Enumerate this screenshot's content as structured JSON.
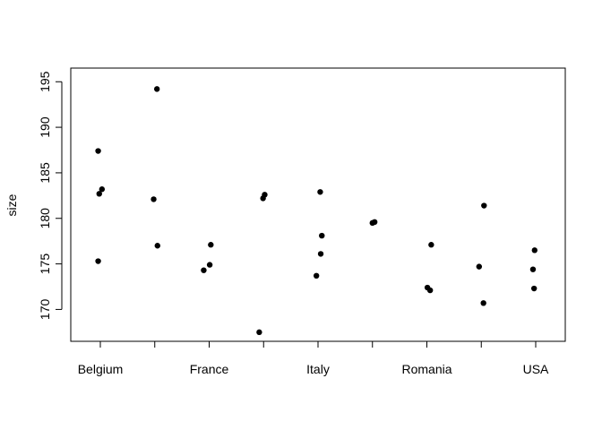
{
  "chart_data": {
    "type": "scatter",
    "title": "",
    "xlabel": "",
    "ylabel": "size",
    "categories": [
      "Belgium",
      "",
      "France",
      "",
      "Italy",
      "",
      "Romania",
      "",
      "USA"
    ],
    "ylim": [
      166.5,
      196.5
    ],
    "yticks": [
      170,
      175,
      180,
      185,
      190,
      195
    ],
    "ytick_labels": [
      "170",
      "175",
      "180",
      "185",
      "190",
      "195"
    ],
    "grid": false,
    "legend": "none",
    "point_color": "#000000",
    "points": [
      {
        "x": 0.96,
        "y": 187.4
      },
      {
        "x": 0.98,
        "y": 182.7
      },
      {
        "x": 1.03,
        "y": 183.2
      },
      {
        "x": 0.96,
        "y": 175.3
      },
      {
        "x": 1.98,
        "y": 182.1
      },
      {
        "x": 2.04,
        "y": 194.2
      },
      {
        "x": 2.05,
        "y": 177.0
      },
      {
        "x": 2.9,
        "y": 174.3
      },
      {
        "x": 3.01,
        "y": 174.9
      },
      {
        "x": 3.03,
        "y": 177.1
      },
      {
        "x": 3.92,
        "y": 167.5
      },
      {
        "x": 3.99,
        "y": 182.2
      },
      {
        "x": 4.02,
        "y": 182.6
      },
      {
        "x": 4.97,
        "y": 173.7
      },
      {
        "x": 5.04,
        "y": 182.9
      },
      {
        "x": 5.07,
        "y": 178.1
      },
      {
        "x": 5.05,
        "y": 176.1
      },
      {
        "x": 6.0,
        "y": 179.5
      },
      {
        "x": 6.04,
        "y": 179.6
      },
      {
        "x": 7.01,
        "y": 172.4
      },
      {
        "x": 7.08,
        "y": 177.1
      },
      {
        "x": 7.06,
        "y": 172.1
      },
      {
        "x": 7.96,
        "y": 174.7
      },
      {
        "x": 8.05,
        "y": 181.4
      },
      {
        "x": 8.04,
        "y": 170.7
      },
      {
        "x": 8.95,
        "y": 174.4
      },
      {
        "x": 8.98,
        "y": 176.5
      },
      {
        "x": 8.97,
        "y": 172.3
      }
    ]
  }
}
